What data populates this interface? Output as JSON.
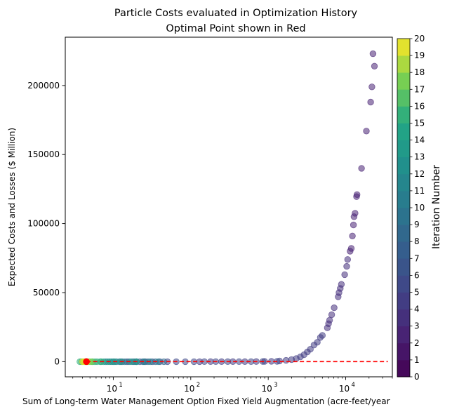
{
  "chart_data": {
    "type": "scatter",
    "title": "Particle Costs evaluated in Optimization History",
    "subtitle": "Optimal Point shown in Red",
    "xlabel": "Sum of Long-term Water Management Option Fixed Yield Augmentation (acre-feet/year",
    "ylabel": "Expected Costs and Losses ($ Million)",
    "x_scale": "log",
    "xlim": [
      2.4,
      40000
    ],
    "ylim": [
      -11000,
      235000
    ],
    "x_ticks": [
      {
        "value": 10,
        "label": "10"
      },
      {
        "value": 100,
        "label": "10"
      },
      {
        "value": 1000,
        "label": "10"
      },
      {
        "value": 10000,
        "label": "10"
      }
    ],
    "x_tick_exponents": [
      "1",
      "2",
      "3",
      "4"
    ],
    "y_ticks": [
      {
        "value": 0,
        "label": "0"
      },
      {
        "value": 50000,
        "label": "50000"
      },
      {
        "value": 100000,
        "label": "100000"
      },
      {
        "value": 150000,
        "label": "150000"
      },
      {
        "value": 200000,
        "label": "200000"
      }
    ],
    "colorbar": {
      "label": "Iteration Number",
      "min": 0,
      "max": 20,
      "ticks": [
        "0",
        "1",
        "2",
        "3",
        "4",
        "5",
        "6",
        "7",
        "8",
        "9",
        "10",
        "11",
        "12",
        "13",
        "14",
        "15",
        "16",
        "17",
        "18",
        "19",
        "20"
      ]
    },
    "optimal_point": {
      "x": 4.5,
      "y": 0,
      "color": "#ff0000"
    },
    "reference_line": {
      "y": 0,
      "x_range": [
        4.5,
        35000
      ],
      "color": "#ff0000",
      "style": "dashed"
    },
    "point_alpha": 0.55,
    "series": [
      {
        "iteration": 2,
        "points": [
          [
            22500,
            223000
          ],
          [
            23500,
            214000
          ],
          [
            21800,
            199000
          ],
          [
            21000,
            188000
          ],
          [
            18500,
            167000
          ],
          [
            16000,
            140000
          ],
          [
            14000,
            121000
          ],
          [
            13800,
            119500
          ],
          [
            13200,
            107500
          ],
          [
            12800,
            105000
          ],
          [
            12600,
            99000
          ],
          [
            12200,
            91000
          ],
          [
            11800,
            82000
          ],
          [
            11400,
            80000
          ]
        ]
      },
      {
        "iteration": 3,
        "points": [
          [
            10600,
            74000
          ],
          [
            10300,
            69000
          ],
          [
            9700,
            63000
          ],
          [
            8800,
            56000
          ],
          [
            8500,
            53000
          ],
          [
            8200,
            50000
          ],
          [
            8000,
            47000
          ],
          [
            7100,
            39000
          ],
          [
            6600,
            34000
          ],
          [
            6200,
            30000
          ],
          [
            6000,
            27500
          ],
          [
            5800,
            24500
          ]
        ]
      },
      {
        "iteration": 4,
        "points": [
          [
            5000,
            19000
          ],
          [
            4700,
            17500
          ],
          [
            4300,
            14000
          ],
          [
            3900,
            12000
          ],
          [
            3500,
            9000
          ],
          [
            3200,
            7000
          ],
          [
            2900,
            5000
          ],
          [
            2600,
            3500
          ],
          [
            2300,
            2200
          ],
          [
            2000,
            1500
          ],
          [
            1700,
            900
          ],
          [
            1400,
            500
          ],
          [
            1100,
            250
          ],
          [
            900,
            120
          ],
          [
            700,
            60
          ],
          [
            500,
            30
          ],
          [
            350,
            15
          ],
          [
            250,
            8
          ],
          [
            180,
            5
          ],
          [
            130,
            3
          ]
        ]
      },
      {
        "iteration": 5,
        "points": [
          [
            1300,
            200
          ],
          [
            850,
            90
          ],
          [
            600,
            40
          ],
          [
            420,
            20
          ],
          [
            300,
            10
          ],
          [
            210,
            6
          ],
          [
            150,
            4
          ],
          [
            110,
            3
          ],
          [
            85,
            2
          ],
          [
            65,
            1
          ],
          [
            50,
            1
          ]
        ]
      },
      {
        "iteration": 6,
        "points": [
          [
            40,
            1
          ],
          [
            32,
            1
          ],
          [
            26,
            1
          ],
          [
            22,
            1
          ],
          [
            18,
            1
          ],
          [
            15,
            1
          ],
          [
            13,
            1
          ]
        ]
      },
      {
        "iteration": 8,
        "points": [
          [
            45,
            1
          ],
          [
            35,
            1
          ],
          [
            28,
            1
          ],
          [
            24,
            1
          ],
          [
            20,
            1
          ],
          [
            16,
            1
          ],
          [
            12,
            1
          ],
          [
            10,
            1
          ]
        ]
      },
      {
        "iteration": 10,
        "points": [
          [
            38,
            1
          ],
          [
            30,
            1
          ],
          [
            25,
            1
          ],
          [
            19,
            1
          ],
          [
            14,
            1
          ],
          [
            11,
            1
          ],
          [
            9,
            1
          ],
          [
            8,
            1
          ]
        ]
      },
      {
        "iteration": 13,
        "points": [
          [
            20,
            1
          ],
          [
            17,
            1
          ],
          [
            12.5,
            1
          ],
          [
            10.5,
            1
          ],
          [
            9.5,
            1
          ],
          [
            8.5,
            1
          ],
          [
            7.5,
            1
          ],
          [
            6.8,
            1
          ]
        ]
      },
      {
        "iteration": 15,
        "points": [
          [
            7,
            1
          ],
          [
            6.2,
            1
          ],
          [
            5.8,
            1
          ],
          [
            5.4,
            1
          ],
          [
            3.9,
            1
          ],
          [
            3.7,
            1
          ]
        ]
      },
      {
        "iteration": 17,
        "points": [
          [
            5.3,
            1
          ],
          [
            5.0,
            1
          ],
          [
            4.8,
            1
          ],
          [
            4.3,
            1
          ],
          [
            4.1,
            1
          ]
        ]
      },
      {
        "iteration": 19,
        "points": [
          [
            4.6,
            1
          ],
          [
            4.4,
            1
          ],
          [
            4.2,
            1
          ],
          [
            4.0,
            1
          ]
        ]
      }
    ]
  }
}
